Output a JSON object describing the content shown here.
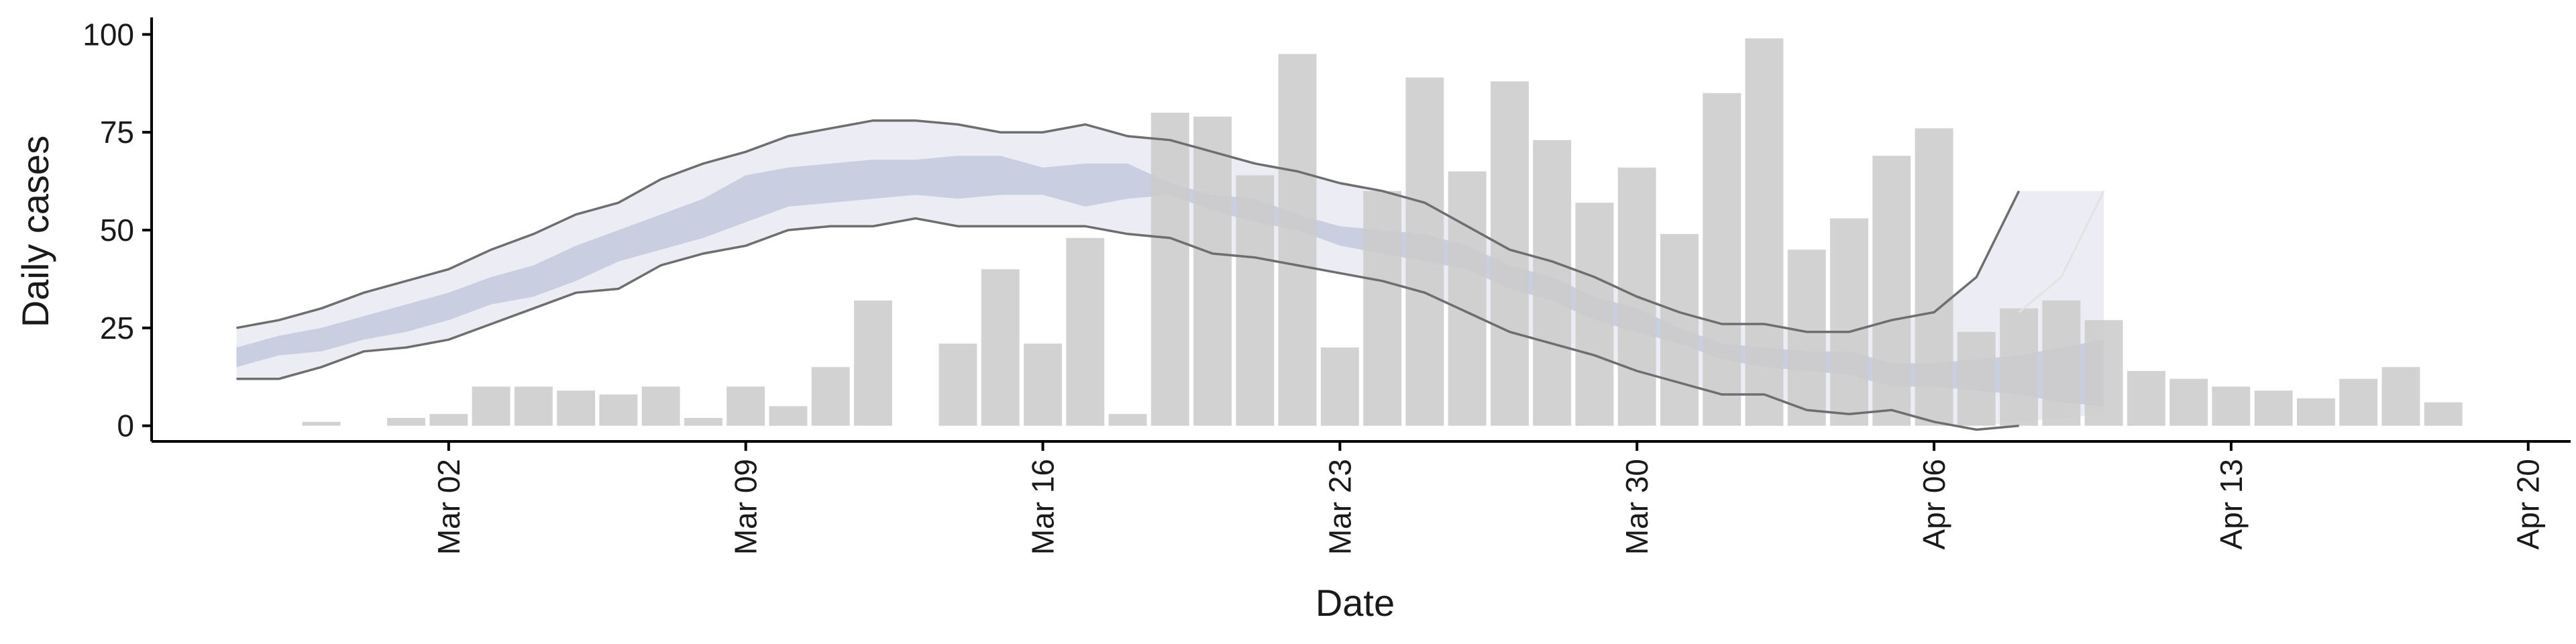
{
  "chart_data": {
    "type": "bar",
    "title": "",
    "xlabel": "Date",
    "ylabel": "Daily cases",
    "ylim": [
      -4,
      104
    ],
    "xlim": [
      "2020-02-24",
      "2020-04-21"
    ],
    "y_ticks": [
      0,
      25,
      50,
      75,
      100
    ],
    "x_ticks": [
      {
        "date": "2020-03-02",
        "label": "Mar 02"
      },
      {
        "date": "2020-03-09",
        "label": "Mar 09"
      },
      {
        "date": "2020-03-16",
        "label": "Mar 16"
      },
      {
        "date": "2020-03-23",
        "label": "Mar 23"
      },
      {
        "date": "2020-03-30",
        "label": "Mar 30"
      },
      {
        "date": "2020-04-06",
        "label": "Apr 06"
      },
      {
        "date": "2020-04-13",
        "label": "Apr 13"
      },
      {
        "date": "2020-04-20",
        "label": "Apr 20"
      }
    ],
    "grid": false,
    "legend": "none",
    "colors": {
      "bars": "#cccccc",
      "band_outer": "#e9eaf2",
      "band_inner": "#c5cbde",
      "bound_line": "#6e6e6e"
    },
    "bars": {
      "x": [
        "2020-02-28",
        "2020-02-29",
        "2020-03-01",
        "2020-03-02",
        "2020-03-03",
        "2020-03-04",
        "2020-03-05",
        "2020-03-06",
        "2020-03-07",
        "2020-03-08",
        "2020-03-09",
        "2020-03-10",
        "2020-03-11",
        "2020-03-12",
        "2020-03-13",
        "2020-03-14",
        "2020-03-15",
        "2020-03-16",
        "2020-03-17",
        "2020-03-18",
        "2020-03-19",
        "2020-03-20",
        "2020-03-21",
        "2020-03-22",
        "2020-03-23",
        "2020-03-24",
        "2020-03-25",
        "2020-03-26",
        "2020-03-27",
        "2020-03-28",
        "2020-03-29",
        "2020-03-30",
        "2020-03-31",
        "2020-04-01",
        "2020-04-02",
        "2020-04-03",
        "2020-04-04",
        "2020-04-05",
        "2020-04-06",
        "2020-04-07",
        "2020-04-08",
        "2020-04-09",
        "2020-04-10",
        "2020-04-11",
        "2020-04-12",
        "2020-04-13",
        "2020-04-14",
        "2020-04-15",
        "2020-04-16",
        "2020-04-17",
        "2020-04-18",
        "2020-04-19"
      ],
      "values": [
        1,
        0,
        2,
        3,
        10,
        10,
        9,
        8,
        10,
        2,
        10,
        5,
        15,
        32,
        0,
        21,
        40,
        21,
        48,
        3,
        80,
        79,
        64,
        95,
        20,
        60,
        89,
        65,
        88,
        73,
        57,
        66,
        49,
        85,
        99,
        45,
        53,
        69,
        76,
        24,
        30,
        32,
        27,
        14,
        12,
        10,
        9,
        7,
        12,
        15,
        6,
        0
      ]
    },
    "band": {
      "x": [
        "2020-02-26",
        "2020-02-27",
        "2020-02-28",
        "2020-02-29",
        "2020-03-01",
        "2020-03-02",
        "2020-03-03",
        "2020-03-04",
        "2020-03-05",
        "2020-03-06",
        "2020-03-07",
        "2020-03-08",
        "2020-03-09",
        "2020-03-10",
        "2020-03-11",
        "2020-03-12",
        "2020-03-13",
        "2020-03-14",
        "2020-03-15",
        "2020-03-16",
        "2020-03-17",
        "2020-03-18",
        "2020-03-19",
        "2020-03-20",
        "2020-03-21",
        "2020-03-22",
        "2020-03-23",
        "2020-03-24",
        "2020-03-25",
        "2020-03-26",
        "2020-03-27",
        "2020-03-28",
        "2020-03-29",
        "2020-03-30",
        "2020-03-31",
        "2020-04-01",
        "2020-04-02",
        "2020-04-03",
        "2020-04-04",
        "2020-04-05",
        "2020-04-06",
        "2020-04-07",
        "2020-04-08",
        "2020-04-09",
        "2020-04-10"
      ],
      "outer_upper": [
        25,
        27,
        30,
        34,
        37,
        40,
        45,
        49,
        54,
        57,
        63,
        67,
        70,
        74,
        76,
        78,
        78,
        77,
        75,
        75,
        77,
        74,
        73,
        70,
        67,
        65,
        62,
        60,
        57,
        51,
        45,
        42,
        38,
        33,
        29,
        26,
        26,
        24,
        24,
        27,
        29,
        38,
        60,
        60,
        60
      ],
      "outer_lower": [
        12,
        12,
        15,
        19,
        20,
        22,
        26,
        30,
        34,
        35,
        41,
        44,
        46,
        50,
        51,
        51,
        53,
        51,
        51,
        51,
        51,
        49,
        48,
        44,
        43,
        41,
        39,
        37,
        34,
        29,
        24,
        21,
        18,
        14,
        11,
        8,
        8,
        4,
        3,
        4,
        0,
        0,
        1,
        2,
        3
      ],
      "inner_upper": [
        20,
        23,
        25,
        28,
        31,
        34,
        38,
        41,
        46,
        50,
        54,
        58,
        64,
        66,
        67,
        68,
        68,
        69,
        69,
        66,
        67,
        67,
        62,
        59,
        58,
        54,
        51,
        50,
        49,
        46,
        41,
        38,
        33,
        30,
        25,
        21,
        20,
        19,
        19,
        16,
        16,
        17,
        18,
        20,
        22
      ],
      "inner_lower": [
        15,
        18,
        19,
        22,
        24,
        27,
        31,
        33,
        37,
        42,
        45,
        48,
        52,
        56,
        57,
        58,
        59,
        58,
        59,
        59,
        56,
        58,
        59,
        55,
        52,
        50,
        46,
        44,
        42,
        40,
        35,
        32,
        27,
        24,
        21,
        17,
        15,
        14,
        13,
        10,
        10,
        9,
        8,
        6,
        5
      ],
      "upper_line": [
        25,
        27,
        30,
        34,
        37,
        40,
        45,
        49,
        54,
        57,
        63,
        67,
        70,
        74,
        76,
        78,
        78,
        77,
        75,
        75,
        77,
        74,
        73,
        70,
        67,
        65,
        62,
        60,
        57,
        51,
        45,
        42,
        38,
        33,
        29,
        26,
        26,
        24,
        24,
        27,
        29,
        38,
        60
      ],
      "lower_line": [
        12,
        12,
        15,
        19,
        20,
        22,
        26,
        30,
        34,
        35,
        41,
        44,
        46,
        50,
        51,
        51,
        53,
        51,
        51,
        51,
        51,
        49,
        48,
        44,
        43,
        41,
        39,
        37,
        34,
        29,
        24,
        21,
        18,
        14,
        11,
        8,
        8,
        4,
        3,
        4,
        1,
        -1,
        0
      ]
    }
  }
}
